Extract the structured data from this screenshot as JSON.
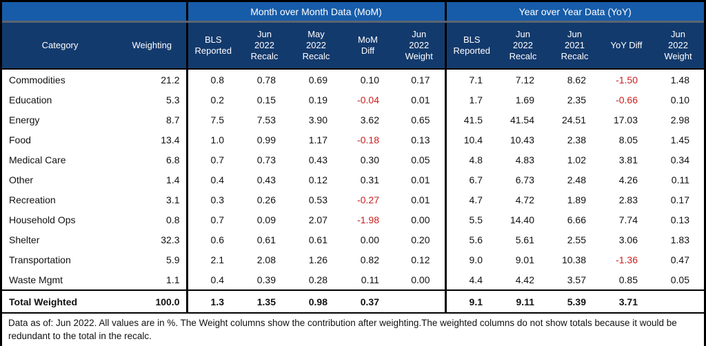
{
  "chart_data": {
    "type": "table",
    "column_groups": [
      {
        "label": "",
        "columns": [
          "Category",
          "Weighting"
        ]
      },
      {
        "label": "Month over Month Data (MoM)",
        "columns": [
          "BLS\nReported",
          "Jun\n2022\nRecalc",
          "May\n2022\nRecalc",
          "MoM\nDiff",
          "Jun\n2022\nWeight"
        ]
      },
      {
        "label": "Year over Year Data (YoY)",
        "columns": [
          "BLS\nReported",
          "Jun\n2022\nRecalc",
          "Jun\n2021\nRecalc",
          "YoY Diff",
          "Jun\n2022\nWeight"
        ]
      }
    ],
    "rows": [
      {
        "category": "Commodities",
        "weighting": "21.2",
        "mom": [
          "0.8",
          "0.78",
          "0.69",
          "0.10",
          "0.17"
        ],
        "yoy": [
          "7.1",
          "7.12",
          "8.62",
          "-1.50",
          "1.48"
        ]
      },
      {
        "category": "Education",
        "weighting": "5.3",
        "mom": [
          "0.2",
          "0.15",
          "0.19",
          "-0.04",
          "0.01"
        ],
        "yoy": [
          "1.7",
          "1.69",
          "2.35",
          "-0.66",
          "0.10"
        ]
      },
      {
        "category": "Energy",
        "weighting": "8.7",
        "mom": [
          "7.5",
          "7.53",
          "3.90",
          "3.62",
          "0.65"
        ],
        "yoy": [
          "41.5",
          "41.54",
          "24.51",
          "17.03",
          "2.98"
        ]
      },
      {
        "category": "Food",
        "weighting": "13.4",
        "mom": [
          "1.0",
          "0.99",
          "1.17",
          "-0.18",
          "0.13"
        ],
        "yoy": [
          "10.4",
          "10.43",
          "2.38",
          "8.05",
          "1.45"
        ]
      },
      {
        "category": "Medical Care",
        "weighting": "6.8",
        "mom": [
          "0.7",
          "0.73",
          "0.43",
          "0.30",
          "0.05"
        ],
        "yoy": [
          "4.8",
          "4.83",
          "1.02",
          "3.81",
          "0.34"
        ]
      },
      {
        "category": "Other",
        "weighting": "1.4",
        "mom": [
          "0.4",
          "0.43",
          "0.12",
          "0.31",
          "0.01"
        ],
        "yoy": [
          "6.7",
          "6.73",
          "2.48",
          "4.26",
          "0.11"
        ]
      },
      {
        "category": "Recreation",
        "weighting": "3.1",
        "mom": [
          "0.3",
          "0.26",
          "0.53",
          "-0.27",
          "0.01"
        ],
        "yoy": [
          "4.7",
          "4.72",
          "1.89",
          "2.83",
          "0.17"
        ]
      },
      {
        "category": "Household Ops",
        "weighting": "0.8",
        "mom": [
          "0.7",
          "0.09",
          "2.07",
          "-1.98",
          "0.00"
        ],
        "yoy": [
          "5.5",
          "14.40",
          "6.66",
          "7.74",
          "0.13"
        ]
      },
      {
        "category": "Shelter",
        "weighting": "32.3",
        "mom": [
          "0.6",
          "0.61",
          "0.61",
          "0.00",
          "0.20"
        ],
        "yoy": [
          "5.6",
          "5.61",
          "2.55",
          "3.06",
          "1.83"
        ]
      },
      {
        "category": "Transportation",
        "weighting": "5.9",
        "mom": [
          "2.1",
          "2.08",
          "1.26",
          "0.82",
          "0.12"
        ],
        "yoy": [
          "9.0",
          "9.01",
          "10.38",
          "-1.36",
          "0.47"
        ]
      },
      {
        "category": "Waste Mgmt",
        "weighting": "1.1",
        "mom": [
          "0.4",
          "0.39",
          "0.28",
          "0.11",
          "0.00"
        ],
        "yoy": [
          "4.4",
          "4.42",
          "3.57",
          "0.85",
          "0.05"
        ]
      }
    ],
    "total_row": {
      "category": "Total Weighted",
      "weighting": "100.0",
      "mom": [
        "1.3",
        "1.35",
        "0.98",
        "0.37",
        ""
      ],
      "yoy": [
        "9.1",
        "9.11",
        "5.39",
        "3.71",
        ""
      ]
    },
    "footnote": "Data as of: Jun 2022. All values are in %. The Weight columns show the contribution after weighting.The weighted columns do not show totals because it would be redundant to the total in the recalc.",
    "colors": {
      "band_blue": "#175CA9",
      "header_navy": "#133A6D",
      "separator_gray": "#5C6570",
      "negative_red": "#CC1D1D",
      "border_black": "#000000"
    }
  }
}
